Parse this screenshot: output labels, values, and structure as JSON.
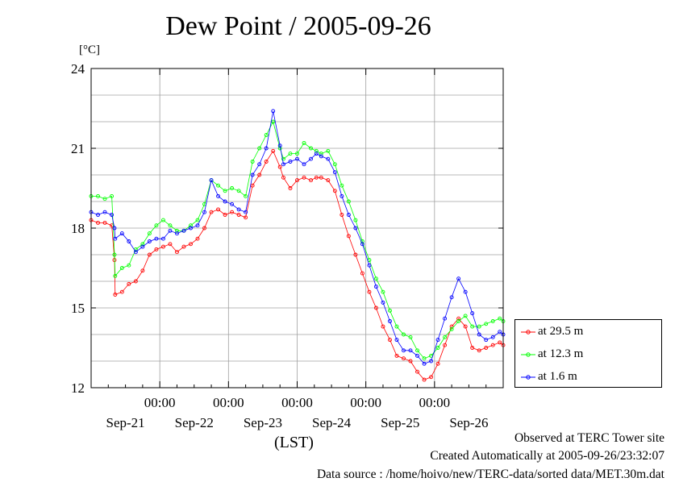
{
  "chart_data": {
    "type": "line",
    "title": "Dew Point / 2005-09-26",
    "unit_label": "[°C]",
    "xlabel": "(LST)",
    "ylim": [
      12,
      24
    ],
    "yticks": [
      "12",
      "15",
      "18",
      "21",
      "24"
    ],
    "xlim": [
      -1.0,
      5.0
    ],
    "xticks": [
      {
        "x": 0,
        "time": "00:00",
        "date": "Sep-21"
      },
      {
        "x": 1,
        "time": "00:00",
        "date": "Sep-22"
      },
      {
        "x": 2,
        "time": "00:00",
        "date": "Sep-23"
      },
      {
        "x": 3,
        "time": "00:00",
        "date": "Sep-24"
      },
      {
        "x": 4,
        "time": "00:00",
        "date": "Sep-25"
      }
    ],
    "extra_date_labels": [
      {
        "x": 4.75,
        "date": "Sep-26"
      }
    ],
    "grid": true,
    "legend_position": "right",
    "x_unit": "days relative to Sep-21 00:00 LST",
    "series": [
      {
        "name": "at 29.5 m",
        "color": "#ff0000",
        "x": [
          -1.0,
          -0.9,
          -0.8,
          -0.7,
          -0.66,
          -0.65,
          -0.55,
          -0.45,
          -0.35,
          -0.25,
          -0.15,
          -0.05,
          0.05,
          0.15,
          0.25,
          0.35,
          0.45,
          0.55,
          0.65,
          0.75,
          0.85,
          0.95,
          1.05,
          1.15,
          1.25,
          1.35,
          1.45,
          1.55,
          1.65,
          1.75,
          1.8,
          1.9,
          2.0,
          2.1,
          2.2,
          2.28,
          2.35,
          2.45,
          2.55,
          2.65,
          2.75,
          2.85,
          2.95,
          3.05,
          3.15,
          3.25,
          3.35,
          3.45,
          3.55,
          3.65,
          3.75,
          3.85,
          3.95,
          4.05,
          4.15,
          4.25,
          4.35,
          4.45,
          4.55,
          4.65,
          4.75,
          4.85,
          4.95,
          5.0
        ],
        "y": [
          18.3,
          18.2,
          18.2,
          18.1,
          16.8,
          15.5,
          15.6,
          15.9,
          16.0,
          16.4,
          17.0,
          17.2,
          17.3,
          17.4,
          17.1,
          17.3,
          17.4,
          17.6,
          18.0,
          18.6,
          18.7,
          18.5,
          18.6,
          18.5,
          18.4,
          19.6,
          20.0,
          20.5,
          20.9,
          20.3,
          19.9,
          19.5,
          19.8,
          19.9,
          19.8,
          19.9,
          19.9,
          19.8,
          19.4,
          18.5,
          17.7,
          17.0,
          16.3,
          15.6,
          15.0,
          14.3,
          13.8,
          13.2,
          13.1,
          13.0,
          12.6,
          12.3,
          12.4,
          12.9,
          13.6,
          14.3,
          14.6,
          14.3,
          13.5,
          13.4,
          13.5,
          13.6,
          13.7,
          13.6
        ]
      },
      {
        "name": "at 12.3 m",
        "color": "#00ff00",
        "x": [
          -1.0,
          -0.9,
          -0.8,
          -0.7,
          -0.66,
          -0.65,
          -0.55,
          -0.45,
          -0.35,
          -0.25,
          -0.15,
          -0.05,
          0.05,
          0.15,
          0.25,
          0.35,
          0.45,
          0.55,
          0.65,
          0.75,
          0.85,
          0.95,
          1.05,
          1.15,
          1.25,
          1.35,
          1.45,
          1.55,
          1.65,
          1.75,
          1.8,
          1.9,
          2.0,
          2.1,
          2.2,
          2.28,
          2.35,
          2.45,
          2.55,
          2.65,
          2.75,
          2.85,
          2.95,
          3.05,
          3.15,
          3.25,
          3.35,
          3.45,
          3.55,
          3.65,
          3.75,
          3.85,
          3.95,
          4.05,
          4.15,
          4.25,
          4.35,
          4.45,
          4.55,
          4.65,
          4.75,
          4.85,
          4.95,
          5.0
        ],
        "y": [
          19.2,
          19.2,
          19.1,
          19.2,
          17.0,
          16.2,
          16.5,
          16.6,
          17.2,
          17.4,
          17.8,
          18.1,
          18.3,
          18.1,
          17.9,
          17.9,
          18.1,
          18.3,
          18.9,
          19.8,
          19.6,
          19.4,
          19.5,
          19.4,
          19.2,
          20.5,
          21.0,
          21.5,
          22.0,
          21.0,
          20.6,
          20.8,
          20.8,
          21.2,
          21.0,
          20.9,
          20.8,
          20.9,
          20.4,
          19.6,
          19.0,
          18.3,
          17.5,
          16.8,
          16.1,
          15.6,
          14.9,
          14.3,
          14.0,
          13.9,
          13.4,
          13.1,
          13.2,
          13.5,
          13.9,
          14.2,
          14.5,
          14.7,
          14.3,
          14.3,
          14.4,
          14.5,
          14.6,
          14.5
        ]
      },
      {
        "name": "at 1.6 m",
        "color": "#0000ff",
        "x": [
          -1.0,
          -0.9,
          -0.8,
          -0.7,
          -0.66,
          -0.65,
          -0.55,
          -0.45,
          -0.35,
          -0.25,
          -0.15,
          -0.05,
          0.05,
          0.15,
          0.25,
          0.35,
          0.45,
          0.55,
          0.65,
          0.75,
          0.85,
          0.95,
          1.05,
          1.15,
          1.25,
          1.35,
          1.45,
          1.55,
          1.65,
          1.75,
          1.8,
          1.9,
          2.0,
          2.1,
          2.2,
          2.28,
          2.35,
          2.45,
          2.55,
          2.65,
          2.75,
          2.85,
          2.95,
          3.05,
          3.15,
          3.25,
          3.35,
          3.45,
          3.55,
          3.65,
          3.75,
          3.85,
          3.95,
          4.05,
          4.15,
          4.25,
          4.35,
          4.45,
          4.55,
          4.65,
          4.75,
          4.85,
          4.95,
          5.0
        ],
        "y": [
          18.6,
          18.5,
          18.6,
          18.5,
          18.0,
          17.6,
          17.8,
          17.5,
          17.1,
          17.3,
          17.5,
          17.6,
          17.6,
          17.9,
          17.8,
          17.9,
          18.0,
          18.1,
          18.6,
          19.8,
          19.2,
          19.0,
          18.9,
          18.7,
          18.6,
          20.0,
          20.4,
          21.0,
          22.4,
          21.1,
          20.4,
          20.5,
          20.6,
          20.4,
          20.6,
          20.8,
          20.7,
          20.6,
          20.1,
          19.2,
          18.5,
          18.0,
          17.4,
          16.6,
          15.8,
          15.2,
          14.5,
          13.8,
          13.4,
          13.4,
          13.2,
          12.9,
          13.0,
          13.8,
          14.6,
          15.4,
          16.1,
          15.6,
          14.8,
          14.0,
          13.8,
          13.9,
          14.1,
          14.0
        ]
      }
    ]
  },
  "footer": {
    "observed": "Observed at TERC Tower site",
    "created": "Created Automatically at 2005-09-26/23:32:07",
    "source": "Data source : /home/hoivo/new/TERC-data/sorted  data/MET.30m.dat"
  }
}
